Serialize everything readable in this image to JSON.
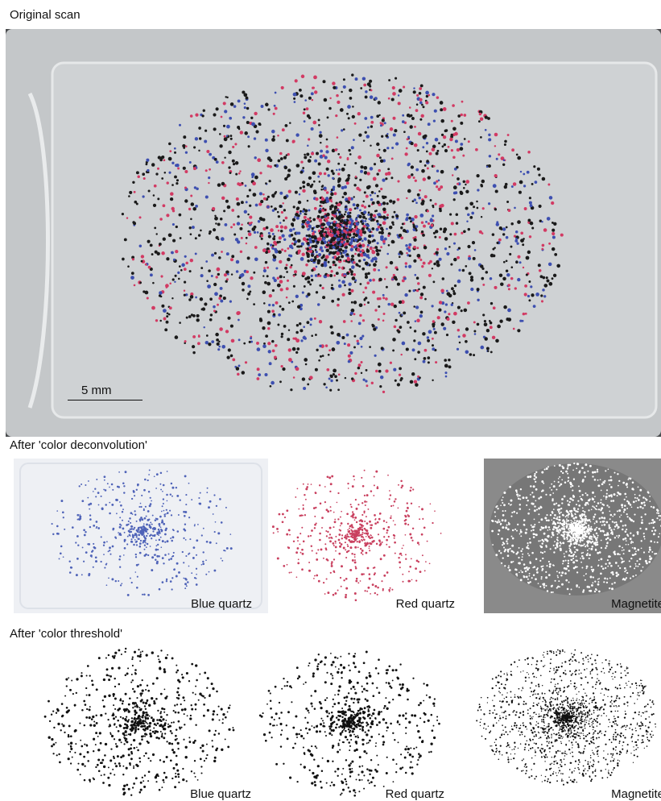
{
  "figure": {
    "sections": {
      "original": {
        "title": "Original scan"
      },
      "deconvolution": {
        "title": "After 'color deconvolution'"
      },
      "threshold": {
        "title": "After 'color threshold'"
      }
    },
    "scale_bar": {
      "label": "5 mm"
    },
    "panels": {
      "deconvolution": [
        {
          "label": "Blue quartz",
          "background": "#eef0f4",
          "dot_color": "#4f63b8"
        },
        {
          "label": "Red quartz",
          "background": "#ffffff",
          "dot_color": "#c9405f"
        },
        {
          "label": "Magnetite",
          "background": "#8a8a8a",
          "dot_color": "#ffffff"
        }
      ],
      "threshold": [
        {
          "label": "Blue quartz",
          "background": "#ffffff",
          "dot_color": "#111111"
        },
        {
          "label": "Red quartz",
          "background": "#ffffff",
          "dot_color": "#111111"
        },
        {
          "label": "Magnetite",
          "background": "#ffffff",
          "dot_color": "#111111"
        }
      ]
    },
    "colors": {
      "slide_background": "#c9ccce",
      "slide_frame": "#4a4c4e",
      "blue_grain": "#3d4fb0",
      "red_grain": "#d23a63",
      "black_grain": "#1a1a1a"
    }
  }
}
